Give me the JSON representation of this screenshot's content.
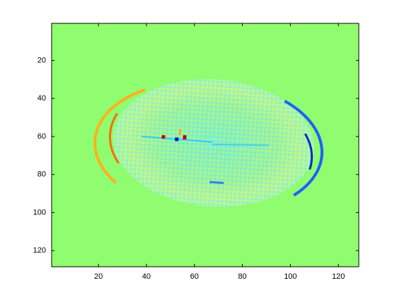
{
  "chart_data": {
    "type": "image",
    "field_color": "#90fc6f",
    "xlim": [
      0.5,
      128.5
    ],
    "ylim": [
      0.5,
      128.5
    ],
    "y_reversed": true,
    "xticks": [
      20,
      40,
      60,
      80,
      100,
      120
    ],
    "yticks": [
      20,
      40,
      60,
      80,
      100,
      120
    ]
  }
}
